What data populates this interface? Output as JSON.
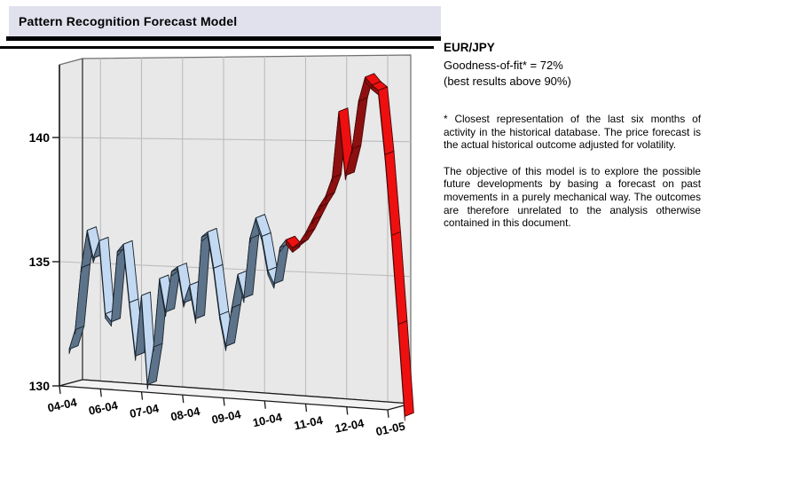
{
  "title_bar": {
    "title": "Pattern Recognition Forecast Model"
  },
  "info_panel": {
    "pair": "EUR/JPY",
    "goodness_line": "Goodness-of-fit* = 72%",
    "threshold_line": "(best results above 90%)",
    "footnote": "* Closest representation of the last six months of activity in the historical database. The price forecast is the actual historical outcome adjusted for volatility.",
    "objective": "The objective of this model is to explore the possible future developments by basing a forecast on past movements in a purely mechanical way. The outcomes are therefore unrelated to the analysis otherwise contained in this document."
  },
  "chart_data": {
    "type": "line",
    "style": "3d-ribbon",
    "instrument": "EUR/JPY",
    "x_tick_labels": [
      "04-04",
      "06-04",
      "07-04",
      "08-04",
      "09-04",
      "10-04",
      "11-04",
      "12-04",
      "01-05"
    ],
    "y_tick_labels": [
      "130",
      "135",
      "140"
    ],
    "y_ticks": [
      130,
      135,
      140
    ],
    "ylim": [
      130,
      143
    ],
    "grid": true,
    "legend_position": "none",
    "series": [
      {
        "name": "historical",
        "color_light": "#c3d9f1",
        "color_dark": "#5d7389",
        "outline": "#18242f",
        "x_start_month": 0,
        "x_step_months": 0.14444,
        "values": [
          131.5,
          132.3,
          134.8,
          136.3,
          135.2,
          135.9,
          133.0,
          132.7,
          135.5,
          135.8,
          133.5,
          131.4,
          133.8,
          130.3,
          131.8,
          134.5,
          133.2,
          134.8,
          135.0,
          133.6,
          134.3,
          133.0,
          136.2,
          136.4,
          135.0,
          133.2,
          132.0,
          133.5,
          134.8,
          133.9,
          136.2,
          137.0,
          136.3,
          135.0,
          134.5,
          135.9,
          136.2
        ],
        "x_labels_span": [
          "04-04",
          "11-04"
        ]
      },
      {
        "name": "forecast",
        "color_light": "#ee1010",
        "color_dark": "#8d1010",
        "outline": "#4a0606",
        "x_start_month": 5.2,
        "x_step_months": 0.15833,
        "values": [
          136.2,
          135.9,
          136.1,
          136.5,
          137.0,
          137.5,
          137.9,
          138.6,
          141.1,
          138.7,
          139.7,
          141.5,
          142.4,
          142.1,
          141.9,
          139.5,
          136.5,
          133.2,
          129.8
        ],
        "x_labels_span": [
          "11-04",
          "01-05"
        ]
      }
    ],
    "colors": {
      "plot_background": "#e8e8e8",
      "floor": "#f2f2f2",
      "gridline": "#bcbcbc",
      "wall_edge": "#6f6f6f",
      "axis_line": "#1a1a1a"
    }
  }
}
